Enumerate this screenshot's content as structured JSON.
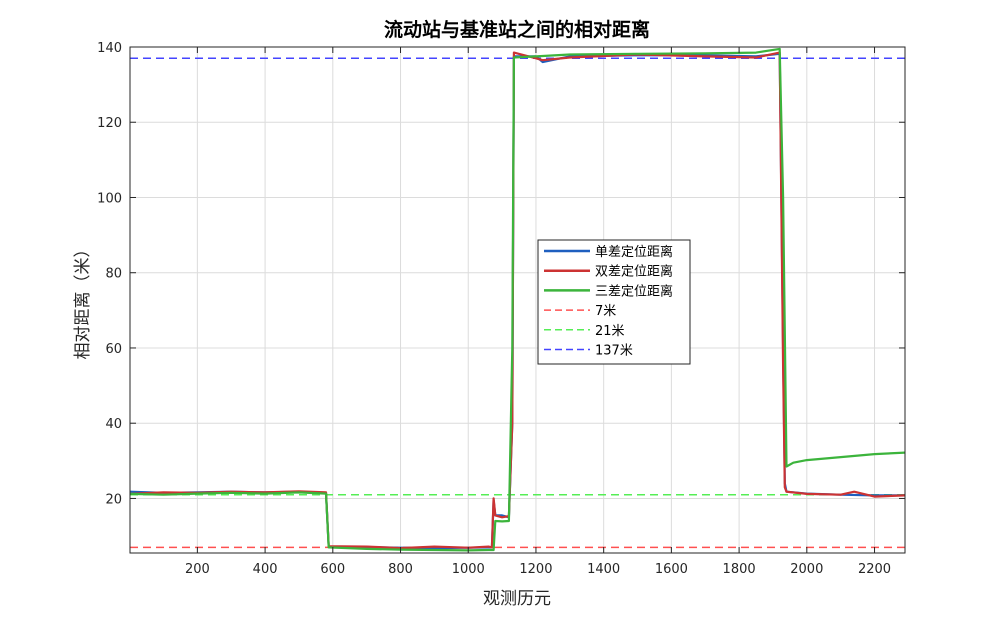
{
  "chart_data": {
    "type": "line",
    "title": "流动站与基准站之间的相对距离",
    "xlabel": "观测历元",
    "ylabel": "相对距离（米）",
    "xlim": [
      1,
      2290
    ],
    "ylim": [
      5.5,
      140
    ],
    "xticks": [
      200,
      400,
      600,
      800,
      1000,
      1200,
      1400,
      1600,
      1800,
      2000,
      2200
    ],
    "yticks": [
      20,
      40,
      60,
      80,
      100,
      120,
      140
    ],
    "grid": true,
    "legend_position": "center",
    "series": [
      {
        "name": "单差定位距离",
        "color": "#1f5fbf",
        "style": "solid",
        "points": [
          [
            1,
            21.8
          ],
          [
            100,
            21.5
          ],
          [
            200,
            21.6
          ],
          [
            300,
            21.8
          ],
          [
            400,
            21.6
          ],
          [
            500,
            21.8
          ],
          [
            580,
            21.5
          ],
          [
            588,
            7.2
          ],
          [
            700,
            7.1
          ],
          [
            800,
            6.9
          ],
          [
            900,
            6.8
          ],
          [
            1000,
            6.9
          ],
          [
            1060,
            7.0
          ],
          [
            1070,
            7.0
          ],
          [
            1075,
            19.5
          ],
          [
            1080,
            15.5
          ],
          [
            1100,
            15.5
          ],
          [
            1120,
            15.0
          ],
          [
            1130,
            40
          ],
          [
            1135,
            137.5
          ],
          [
            1200,
            137.5
          ],
          [
            1220,
            136.0
          ],
          [
            1300,
            137.5
          ],
          [
            1500,
            137.8
          ],
          [
            1700,
            137.8
          ],
          [
            1850,
            137.5
          ],
          [
            1920,
            138.2
          ],
          [
            1930,
            60
          ],
          [
            1935,
            24
          ],
          [
            1940,
            21.8
          ],
          [
            2000,
            21.3
          ],
          [
            2100,
            21.0
          ],
          [
            2200,
            20.8
          ],
          [
            2290,
            20.8
          ]
        ]
      },
      {
        "name": "双差定位距离",
        "color": "#cc3333",
        "style": "solid",
        "points": [
          [
            1,
            21.2
          ],
          [
            100,
            21.6
          ],
          [
            200,
            21.5
          ],
          [
            300,
            21.8
          ],
          [
            400,
            21.6
          ],
          [
            500,
            21.9
          ],
          [
            580,
            21.6
          ],
          [
            588,
            7.3
          ],
          [
            700,
            7.2
          ],
          [
            800,
            6.8
          ],
          [
            900,
            7.2
          ],
          [
            1000,
            6.9
          ],
          [
            1060,
            7.2
          ],
          [
            1070,
            7.0
          ],
          [
            1075,
            20.0
          ],
          [
            1080,
            15.5
          ],
          [
            1100,
            15.0
          ],
          [
            1120,
            15.3
          ],
          [
            1130,
            40
          ],
          [
            1135,
            138.5
          ],
          [
            1200,
            137.0
          ],
          [
            1220,
            136.5
          ],
          [
            1300,
            137.2
          ],
          [
            1500,
            138.0
          ],
          [
            1700,
            137.5
          ],
          [
            1850,
            137.2
          ],
          [
            1920,
            138.5
          ],
          [
            1930,
            55
          ],
          [
            1935,
            23
          ],
          [
            1940,
            21.8
          ],
          [
            2000,
            21.2
          ],
          [
            2100,
            21.0
          ],
          [
            2140,
            21.8
          ],
          [
            2200,
            20.5
          ],
          [
            2290,
            20.8
          ]
        ]
      },
      {
        "name": "三差定位距离",
        "color": "#3cb43c",
        "style": "solid",
        "points": [
          [
            1,
            21.2
          ],
          [
            100,
            21.0
          ],
          [
            200,
            21.3
          ],
          [
            300,
            21.5
          ],
          [
            400,
            21.3
          ],
          [
            500,
            21.6
          ],
          [
            580,
            21.3
          ],
          [
            588,
            7.0
          ],
          [
            700,
            6.6
          ],
          [
            800,
            6.4
          ],
          [
            900,
            6.3
          ],
          [
            1000,
            6.2
          ],
          [
            1060,
            6.3
          ],
          [
            1075,
            6.3
          ],
          [
            1080,
            14.0
          ],
          [
            1100,
            13.9
          ],
          [
            1120,
            14.0
          ],
          [
            1130,
            60
          ],
          [
            1135,
            137.2
          ],
          [
            1200,
            137.5
          ],
          [
            1300,
            138.0
          ],
          [
            1500,
            138.2
          ],
          [
            1700,
            138.3
          ],
          [
            1850,
            138.5
          ],
          [
            1920,
            139.5
          ],
          [
            1930,
            100
          ],
          [
            1940,
            28.5
          ],
          [
            1960,
            29.5
          ],
          [
            2000,
            30.2
          ],
          [
            2100,
            31.0
          ],
          [
            2200,
            31.8
          ],
          [
            2290,
            32.2
          ]
        ]
      },
      {
        "name": "7米",
        "color": "#ff5050",
        "style": "dashed",
        "points": [
          [
            1,
            7
          ],
          [
            2290,
            7
          ]
        ]
      },
      {
        "name": "21米",
        "color": "#55ee55",
        "style": "dashed",
        "points": [
          [
            1,
            21
          ],
          [
            2290,
            21
          ]
        ]
      },
      {
        "name": "137米",
        "color": "#4444ff",
        "style": "dashed",
        "points": [
          [
            1,
            137
          ],
          [
            2290,
            137
          ]
        ]
      }
    ]
  }
}
